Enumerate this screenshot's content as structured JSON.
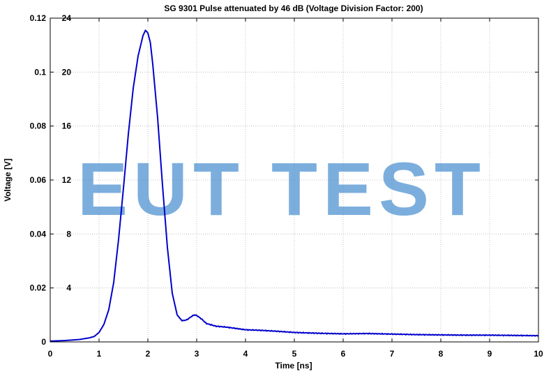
{
  "chart_data": {
    "type": "line",
    "title": "SG 9301 Pulse attenuated  by 46 dB (Voltage Division Factor: 200)",
    "xlabel": "Time [ns]",
    "ylabel": "Voltage [V]",
    "xlim": [
      0,
      10
    ],
    "ylim": [
      0,
      0.12
    ],
    "y2lim": [
      0,
      24
    ],
    "x_ticks": [
      "0",
      "1",
      "2",
      "3",
      "4",
      "5",
      "6",
      "7",
      "8",
      "9",
      "10"
    ],
    "y_ticks": [
      "0",
      "0.02",
      "0.04",
      "0.06",
      "0.08",
      "0.1",
      "0.12"
    ],
    "y2_ticks": [
      "4",
      "8",
      "12",
      "16",
      "20",
      "24"
    ],
    "grid": true,
    "line_color": "#0000cc",
    "series": [
      {
        "x": [
          0,
          0.3,
          0.6,
          0.8,
          0.9,
          1.0,
          1.1,
          1.2,
          1.3,
          1.4,
          1.5,
          1.6,
          1.7,
          1.8,
          1.9,
          1.95,
          2.0,
          2.05,
          2.1,
          2.2,
          2.3,
          2.4,
          2.5,
          2.6,
          2.7,
          2.8,
          2.9,
          2.95,
          3.0,
          3.1,
          3.2,
          3.4,
          3.6,
          3.8,
          4.0,
          4.3,
          4.6,
          5.0,
          5.5,
          6.0,
          6.5,
          7.0,
          7.5,
          8.0,
          8.5,
          9.0,
          9.5,
          10.0
        ],
        "values": [
          0.0003,
          0.0005,
          0.0009,
          0.0015,
          0.002,
          0.0035,
          0.0065,
          0.012,
          0.022,
          0.038,
          0.057,
          0.077,
          0.094,
          0.106,
          0.1135,
          0.1155,
          0.1145,
          0.111,
          0.103,
          0.083,
          0.058,
          0.035,
          0.018,
          0.01,
          0.0078,
          0.0082,
          0.0095,
          0.01,
          0.0098,
          0.0085,
          0.0068,
          0.0058,
          0.0055,
          0.005,
          0.0045,
          0.0043,
          0.004,
          0.0035,
          0.0032,
          0.003,
          0.0031,
          0.0029,
          0.0027,
          0.0026,
          0.0025,
          0.0025,
          0.0024,
          0.0023
        ]
      }
    ]
  },
  "watermark": {
    "text": "EUT TEST",
    "color": "#4a8fd0"
  }
}
